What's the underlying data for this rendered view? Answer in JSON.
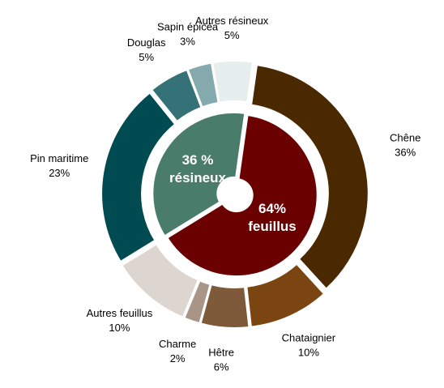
{
  "chart_data": {
    "type": "donut",
    "rings": [
      {
        "categories": [
          "Chêne",
          "Chataignier",
          "Hêtre",
          "Charme",
          "Autres feuillus",
          "Pin maritime",
          "Douglas",
          "Sapin épicéa",
          "Autres résineux"
        ],
        "values": [
          36,
          10,
          6,
          2,
          10,
          23,
          5,
          3,
          5
        ],
        "value_labels": [
          "36%",
          "10%",
          "6%",
          "2%",
          "10%",
          "23%",
          "5%",
          "3%",
          "5%"
        ],
        "colors": [
          "#4a2800",
          "#7a4510",
          "#7f5a3a",
          "#a89585",
          "#ddd5cf",
          "#004b52",
          "#347278",
          "#84aaad",
          "#e6eeee"
        ]
      },
      {
        "categories": [
          "feuillus",
          "résineux"
        ],
        "values": [
          64,
          36
        ],
        "value_labels": [
          "64%",
          "36 %"
        ],
        "colors": [
          "#6b0000",
          "#4a7c6c"
        ]
      }
    ]
  }
}
